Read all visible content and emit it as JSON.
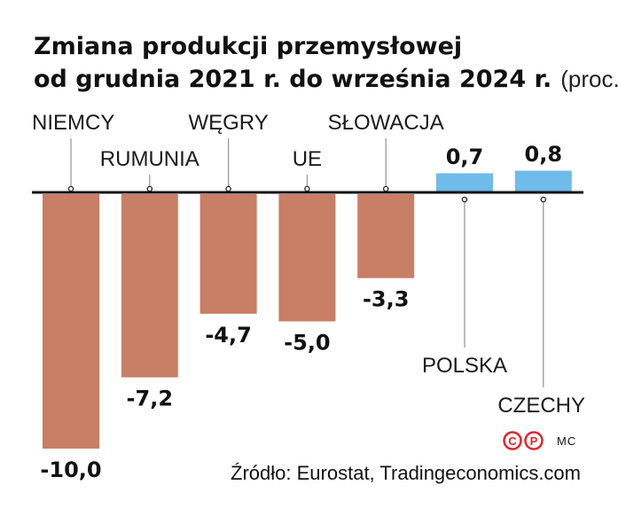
{
  "chart_data": {
    "type": "bar",
    "title_line1": "Zmiana produkcji przemysłowej",
    "title_line2": "od grudnia 2021 r. do września 2024 r.",
    "unit": "(proc.)",
    "categories": [
      "NIEMCY",
      "RUMUNIA",
      "WĘGRY",
      "UE",
      "SŁOWACJA",
      "POLSKA",
      "CZECHY"
    ],
    "values": [
      -10.0,
      -7.2,
      -4.7,
      -5.0,
      -3.3,
      0.7,
      0.8
    ],
    "value_labels": [
      "-10,0",
      "-7,2",
      "-4,7",
      "-5,0",
      "-3,3",
      "0,7",
      "0,8"
    ],
    "ylim": [
      -10.0,
      0.8
    ],
    "colors": {
      "negative": "#c97e66",
      "positive": "#6fbbea",
      "axis": "#111111",
      "leader": "#999999"
    },
    "source": "Źródło: Eurostat, Tradingeconomics.com",
    "credit_logo": "CP",
    "author": "MC"
  }
}
